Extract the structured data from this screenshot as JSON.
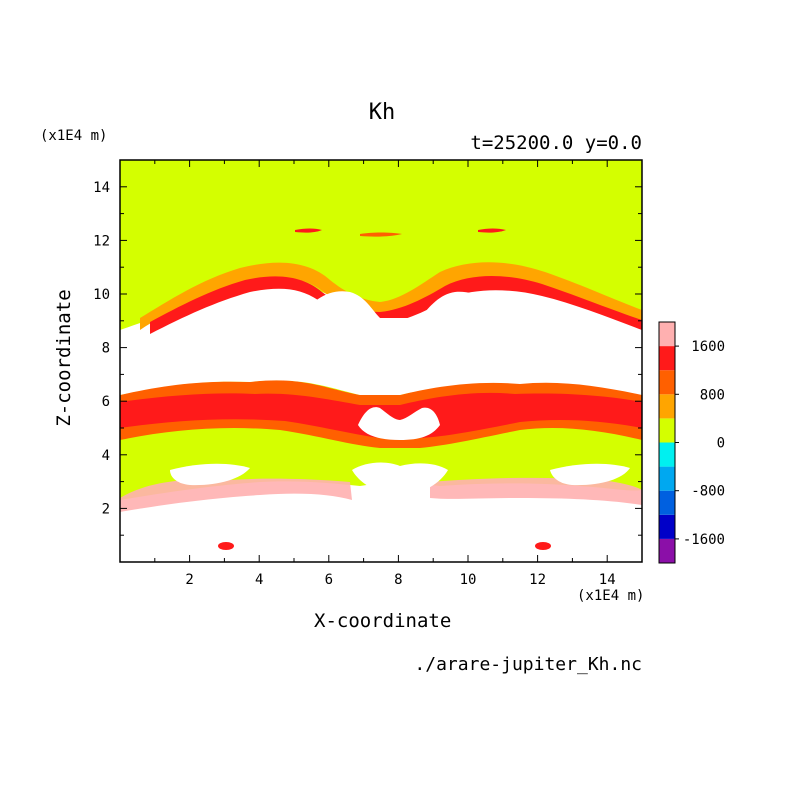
{
  "chart_data": {
    "type": "heatmap",
    "title": "Kh",
    "subtitle": "t=25200.0 y=0.0",
    "xlabel": "X-coordinate",
    "ylabel": "Z-coordinate",
    "x_unit": "(x1E4 m)",
    "y_unit": "(x1E4 m)",
    "xlim": [
      0,
      15
    ],
    "ylim": [
      0,
      15
    ],
    "x_ticks": [
      2,
      4,
      6,
      8,
      10,
      12,
      14
    ],
    "y_ticks": [
      2,
      4,
      6,
      8,
      10,
      12,
      14
    ],
    "source_file": "./arare-jupiter_Kh.nc",
    "colorbar": {
      "tick_labels": [
        "1600",
        "800",
        "0",
        "-800",
        "-1600"
      ],
      "tick_values": [
        1600,
        800,
        0,
        -800,
        -1600
      ],
      "range": [
        -2000,
        2000
      ],
      "levels": [
        {
          "min": -2000,
          "max": -1600,
          "color": "#8B0FA8"
        },
        {
          "min": -1600,
          "max": -1200,
          "color": "#0000C8"
        },
        {
          "min": -1200,
          "max": -800,
          "color": "#0060E0"
        },
        {
          "min": -800,
          "max": -400,
          "color": "#00A8F0"
        },
        {
          "min": -400,
          "max": 0,
          "color": "#00F0F0"
        },
        {
          "min": 0,
          "max": 400,
          "color": "#D4FF00"
        },
        {
          "min": 400,
          "max": 800,
          "color": "#FFA500"
        },
        {
          "min": 800,
          "max": 1200,
          "color": "#FF6000"
        },
        {
          "min": 1200,
          "max": 1600,
          "color": "#FF1A1A"
        },
        {
          "min": 1600,
          "max": 2000,
          "color": "#FFB0B0"
        }
      ],
      "above_color": "#FFFFFF"
    }
  }
}
